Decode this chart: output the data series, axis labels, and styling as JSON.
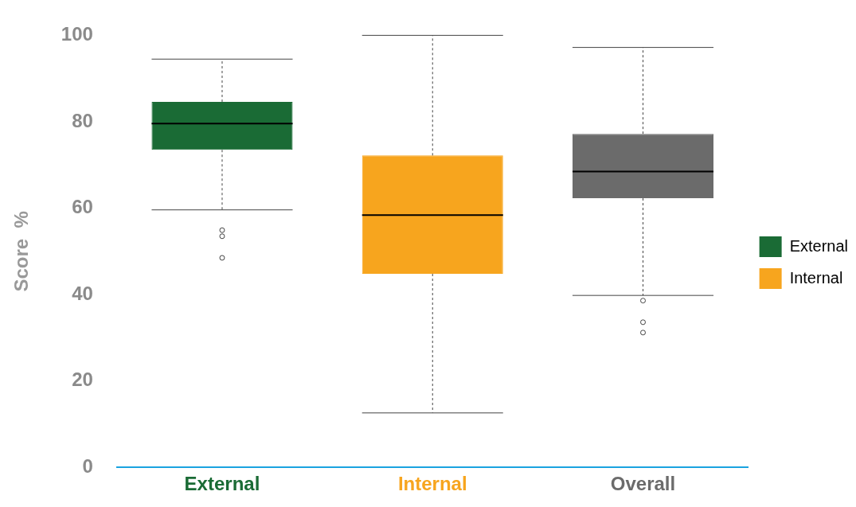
{
  "chart_data": {
    "type": "box",
    "categories": [
      "External",
      "Internal",
      "Overall"
    ],
    "ylabel": "Score  %",
    "ylim": [
      0,
      100
    ],
    "yticks": [
      0,
      20,
      40,
      60,
      80,
      100
    ],
    "grid": false,
    "legend": "right",
    "series": [
      {
        "name": "External",
        "color": "#1a6b35",
        "boxes": [
          {
            "low": 59.6,
            "q1": 73.5,
            "median": 79.6,
            "q3": 84.6,
            "high": 94.5,
            "outliers": [
              54.9,
              53.5,
              48.5
            ]
          },
          null,
          null
        ]
      },
      {
        "name": "Internal",
        "color": "#f7a51e",
        "boxes": [
          null,
          {
            "low": 12.6,
            "q1": 44.8,
            "median": 58.4,
            "q3": 72.2,
            "high": 100
          },
          null
        ]
      },
      {
        "color": "#6b6b6b",
        "boxes": [
          null,
          null,
          {
            "low": 39.8,
            "q1": 62.3,
            "median": 68.5,
            "q3": 77.2,
            "high": 97.2,
            "outliers": [
              38.6,
              33.6,
              31.2
            ]
          }
        ]
      }
    ]
  }
}
